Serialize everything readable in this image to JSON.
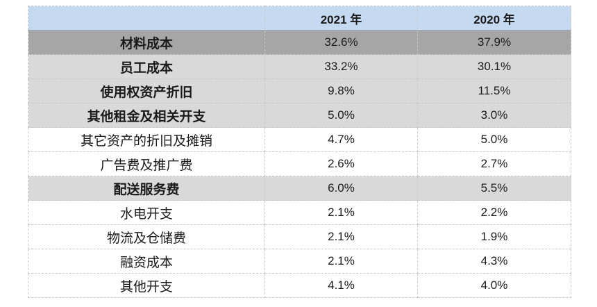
{
  "header": {
    "label": "",
    "col_2021": "2021 年",
    "col_2020": "2020 年"
  },
  "rows": [
    {
      "label": "材料成本",
      "v2021": "32.6%",
      "v2020": "37.9%",
      "shade": "dark",
      "bold": true
    },
    {
      "label": "员工成本",
      "v2021": "33.2%",
      "v2020": "30.1%",
      "shade": "light",
      "bold": true
    },
    {
      "label": "使用权资产折旧",
      "v2021": "9.8%",
      "v2020": "11.5%",
      "shade": "light",
      "bold": true
    },
    {
      "label": "其他租金及相关开支",
      "v2021": "5.0%",
      "v2020": "3.0%",
      "shade": "light",
      "bold": true
    },
    {
      "label": "其它资产的折旧及摊销",
      "v2021": "4.7%",
      "v2020": "5.0%",
      "shade": "plain",
      "bold": false
    },
    {
      "label": "广告费及推广费",
      "v2021": "2.6%",
      "v2020": "2.7%",
      "shade": "plain",
      "bold": false
    },
    {
      "label": "配送服务费",
      "v2021": "6.0%",
      "v2020": "5.5%",
      "shade": "light",
      "bold": true
    },
    {
      "label": "水电开支",
      "v2021": "2.1%",
      "v2020": "2.2%",
      "shade": "plain",
      "bold": false
    },
    {
      "label": "物流及仓储费",
      "v2021": "2.1%",
      "v2020": "1.9%",
      "shade": "plain",
      "bold": false
    },
    {
      "label": "融资成本",
      "v2021": "2.1%",
      "v2020": "4.3%",
      "shade": "plain",
      "bold": false
    },
    {
      "label": "其他开支",
      "v2021": "4.1%",
      "v2020": "4.0%",
      "shade": "plain",
      "bold": false
    }
  ],
  "colors": {
    "header_bg": "#c5d9f1",
    "dark_row_bg": "#a6a6a6",
    "light_row_bg": "#d9d9d9"
  }
}
